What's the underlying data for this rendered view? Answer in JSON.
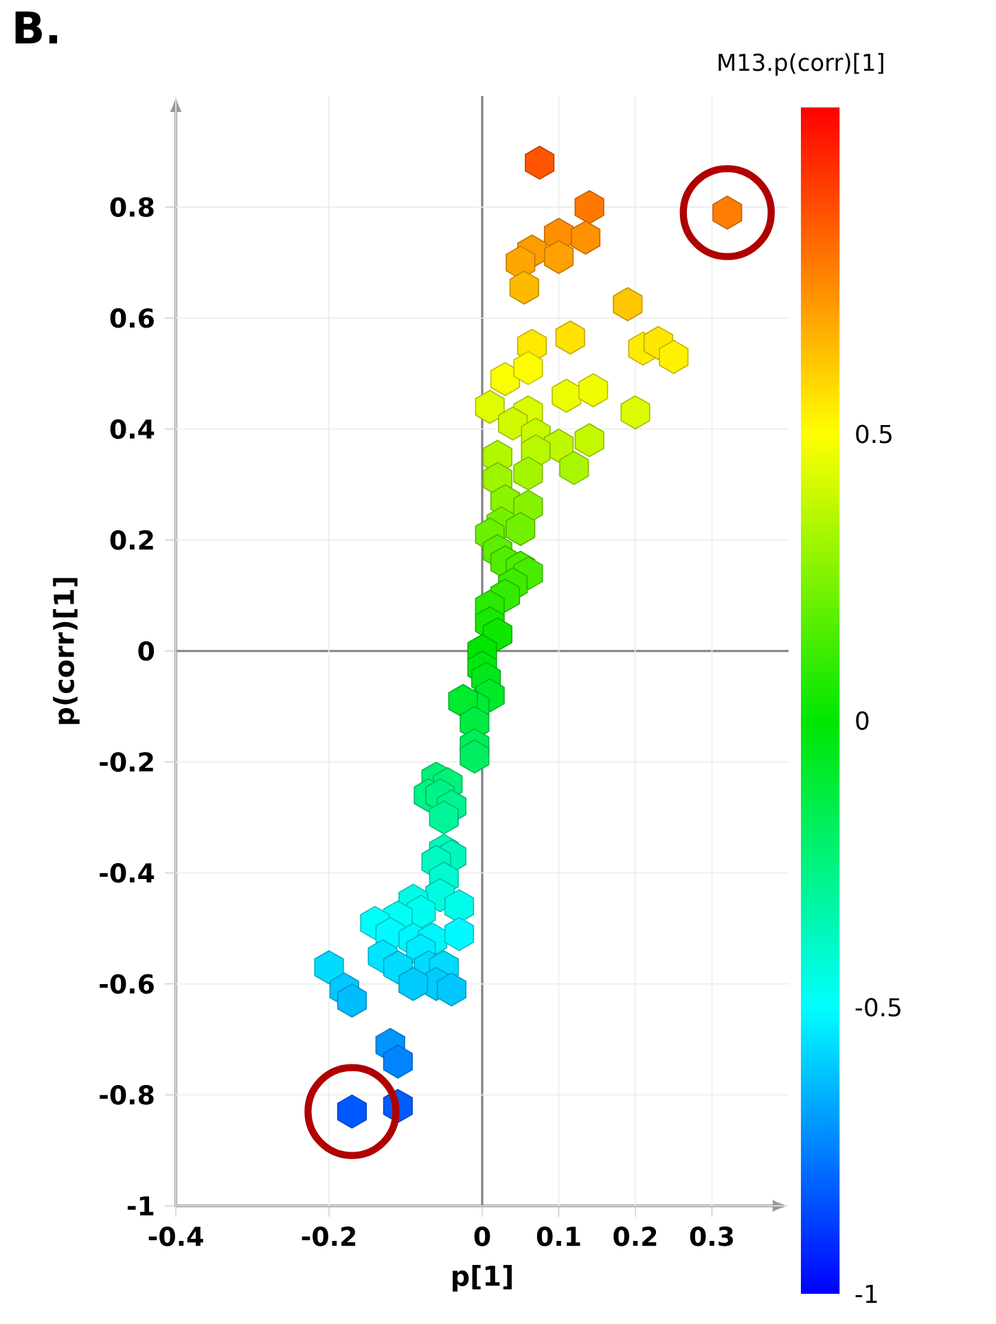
{
  "chart_data": {
    "type": "scatter",
    "title": "B.",
    "xlabel": "p[1]",
    "ylabel": "p(corr)[1]",
    "clabel": "M13.p(corr)[1]",
    "xlim": [
      -0.4,
      0.4
    ],
    "ylim": [
      -1,
      1
    ],
    "xticks": [
      -0.4,
      -0.2,
      0,
      0.1,
      0.2,
      0.3
    ],
    "yticks": [
      -1,
      -0.8,
      -0.6,
      -0.4,
      -0.2,
      0,
      0.2,
      0.4,
      0.6,
      0.8
    ],
    "clim": [
      -1,
      1.07
    ],
    "cticks": [
      -1,
      -0.5,
      0,
      0.5
    ],
    "grid": true,
    "x": [
      0.075,
      0.14,
      0.32,
      0.1,
      0.135,
      0.065,
      0.1,
      0.05,
      0.055,
      0.19,
      0.21,
      0.23,
      0.25,
      0.115,
      0.065,
      0.03,
      0.06,
      0.11,
      0.145,
      0.2,
      0.01,
      0.06,
      0.04,
      0.07,
      0.1,
      0.14,
      0.12,
      0.07,
      0.06,
      0.02,
      0.02,
      0.03,
      0.025,
      0.06,
      0.05,
      0.01,
      0.02,
      0.03,
      0.05,
      0.06,
      0.04,
      0.03,
      0.01,
      0.01,
      0.02,
      0.0,
      0.0,
      0.005,
      0.01,
      -0.01,
      -0.025,
      -0.01,
      -0.01,
      -0.01,
      -0.06,
      -0.045,
      -0.07,
      -0.055,
      -0.04,
      -0.05,
      -0.05,
      -0.04,
      -0.06,
      -0.05,
      -0.055,
      -0.09,
      -0.08,
      -0.03,
      -0.11,
      -0.14,
      -0.12,
      -0.09,
      -0.065,
      -0.03,
      -0.08,
      -0.13,
      -0.11,
      -0.07,
      -0.05,
      -0.06,
      -0.09,
      -0.04,
      -0.2,
      -0.18,
      -0.17,
      -0.12,
      -0.11,
      -0.17,
      -0.11
    ],
    "values": [
      0.88,
      0.8,
      0.79,
      0.75,
      0.745,
      0.72,
      0.71,
      0.7,
      0.655,
      0.625,
      0.545,
      0.555,
      0.53,
      0.565,
      0.55,
      0.49,
      0.51,
      0.46,
      0.47,
      0.43,
      0.44,
      0.43,
      0.41,
      0.39,
      0.37,
      0.38,
      0.33,
      0.36,
      0.32,
      0.35,
      0.31,
      0.27,
      0.23,
      0.26,
      0.22,
      0.21,
      0.18,
      0.16,
      0.15,
      0.14,
      0.12,
      0.1,
      0.08,
      0.05,
      0.03,
      0.0,
      -0.03,
      -0.05,
      -0.08,
      -0.1,
      -0.09,
      -0.13,
      -0.17,
      -0.19,
      -0.23,
      -0.24,
      -0.26,
      -0.26,
      -0.28,
      -0.3,
      -0.36,
      -0.37,
      -0.38,
      -0.41,
      -0.44,
      -0.45,
      -0.47,
      -0.46,
      -0.48,
      -0.49,
      -0.51,
      -0.52,
      -0.52,
      -0.51,
      -0.54,
      -0.55,
      -0.57,
      -0.57,
      -0.57,
      -0.6,
      -0.6,
      -0.61,
      -0.57,
      -0.61,
      -0.63,
      -0.71,
      -0.74,
      -0.83,
      -0.82
    ],
    "cvalues": [
      0.88,
      0.8,
      0.79,
      0.75,
      0.745,
      0.72,
      0.71,
      0.7,
      0.655,
      0.625,
      0.545,
      0.555,
      0.53,
      0.565,
      0.55,
      0.49,
      0.51,
      0.46,
      0.47,
      0.43,
      0.44,
      0.43,
      0.41,
      0.39,
      0.37,
      0.38,
      0.33,
      0.36,
      0.32,
      0.35,
      0.31,
      0.27,
      0.23,
      0.26,
      0.22,
      0.21,
      0.18,
      0.16,
      0.15,
      0.14,
      0.12,
      0.1,
      0.08,
      0.05,
      0.03,
      0.0,
      -0.03,
      -0.05,
      -0.08,
      -0.1,
      -0.09,
      -0.13,
      -0.17,
      -0.19,
      -0.23,
      -0.24,
      -0.26,
      -0.26,
      -0.28,
      -0.3,
      -0.36,
      -0.37,
      -0.38,
      -0.41,
      -0.44,
      -0.45,
      -0.47,
      -0.46,
      -0.48,
      -0.49,
      -0.51,
      -0.52,
      -0.52,
      -0.51,
      -0.54,
      -0.55,
      -0.57,
      -0.57,
      -0.57,
      -0.6,
      -0.6,
      -0.61,
      -0.57,
      -0.61,
      -0.63,
      -0.71,
      -0.74,
      -0.83,
      -0.82
    ]
  }
}
